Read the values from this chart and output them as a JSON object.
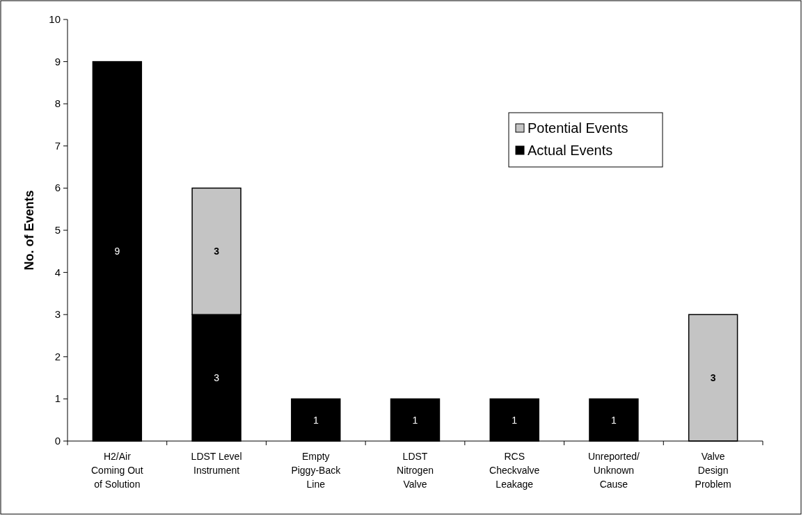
{
  "chart_data": {
    "type": "bar",
    "stacked": true,
    "ylabel": "No. of Events",
    "categories": [
      "H2/Air\nComing Out\nof Solution",
      "LDST Level\nInstrument",
      "Empty\nPiggy-Back\nLine",
      "LDST\nNitrogen\nValve",
      "RCS\nCheckvalve\nLeakage",
      "Unreported/\nUnknown\nCause",
      "Valve\nDesign\nProblem"
    ],
    "series": [
      {
        "name": "Actual Events",
        "color": "#000000",
        "values": [
          9,
          3,
          1,
          1,
          1,
          1,
          0
        ],
        "value_labels": [
          "9",
          "3",
          "1",
          "1",
          "1",
          "1",
          null
        ]
      },
      {
        "name": "Potential Events",
        "color": "#c4c4c4",
        "values": [
          0,
          3,
          0,
          0,
          0,
          0,
          3
        ],
        "value_labels": [
          null,
          "3",
          null,
          null,
          null,
          null,
          "3"
        ]
      }
    ],
    "ylim": [
      0,
      10
    ],
    "yticks": [
      0,
      1,
      2,
      3,
      4,
      5,
      6,
      7,
      8,
      9,
      10
    ],
    "grid": false,
    "legend": "top right"
  }
}
